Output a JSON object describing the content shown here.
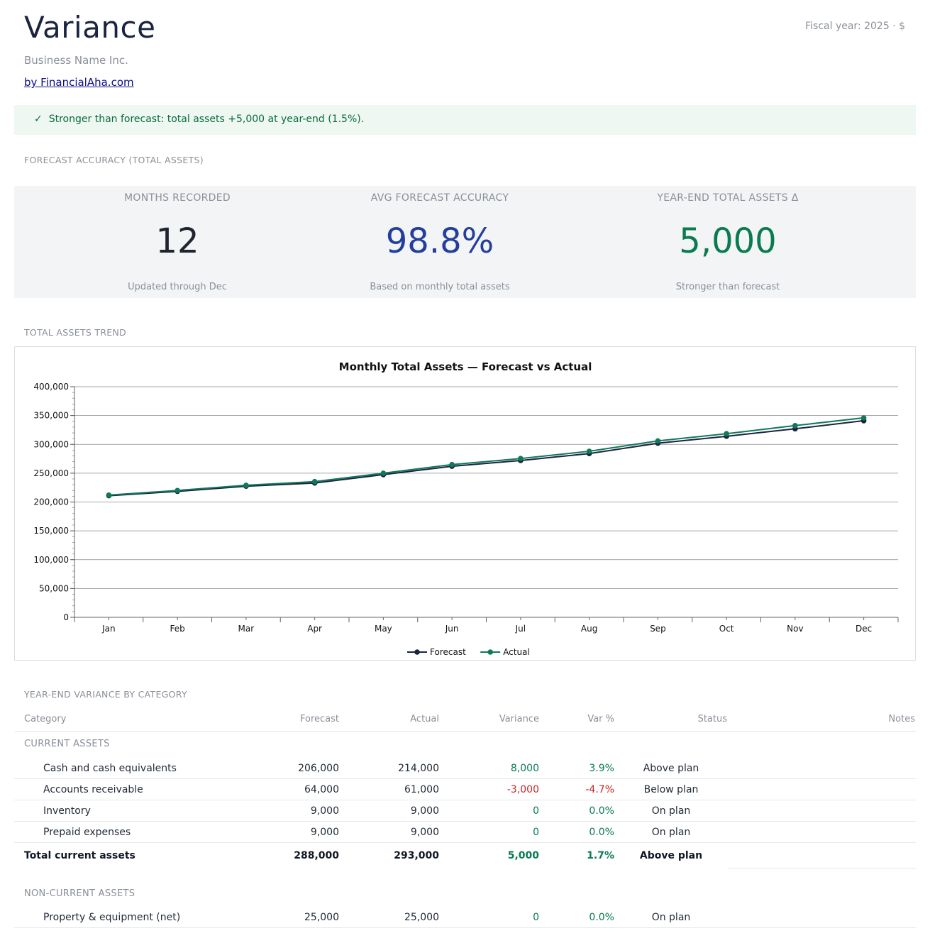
{
  "header": {
    "title": "Variance",
    "fiscal": "Fiscal year: 2025 · $",
    "business": "Business Name Inc.",
    "link": "by FinancialAha.com"
  },
  "banner": {
    "icon": "check-icon",
    "check": "✓",
    "text": "Stronger than forecast: total assets +5,000 at year-end (1.5%)."
  },
  "sections": {
    "accuracy": "FORECAST ACCURACY (TOTAL ASSETS)",
    "trend": "TOTAL ASSETS TREND",
    "variance": "YEAR-END VARIANCE BY CATEGORY"
  },
  "kpis": [
    {
      "label": "MONTHS RECORDED",
      "value": "12",
      "sub": "Updated through Dec",
      "color": "#1f2430"
    },
    {
      "label": "AVG FORECAST ACCURACY",
      "value": "98.8%",
      "sub": "Based on monthly total assets",
      "color": "#233f9b"
    },
    {
      "label": "YEAR-END TOTAL ASSETS Δ",
      "value": "5,000",
      "sub": "Stronger than forecast",
      "color": "#0a7a4f"
    }
  ],
  "chart_data": {
    "type": "line",
    "title": "Monthly Total Assets — Forecast vs Actual",
    "categories": [
      "Jan",
      "Feb",
      "Mar",
      "Apr",
      "May",
      "Jun",
      "Jul",
      "Aug",
      "Sep",
      "Oct",
      "Nov",
      "Dec"
    ],
    "series": [
      {
        "name": "Forecast",
        "color": "#1a2440",
        "values": [
          211000,
          218500,
          227500,
          233000,
          247500,
          262000,
          272000,
          284000,
          302000,
          314000,
          327000,
          341000
        ]
      },
      {
        "name": "Actual",
        "color": "#0f7a5a",
        "values": [
          212000,
          220000,
          229000,
          235500,
          250000,
          265000,
          275500,
          288000,
          306000,
          318500,
          332500,
          346000
        ]
      }
    ],
    "ylim": [
      0,
      400000
    ],
    "yticks": [
      "400,000",
      "350,000",
      "300,000",
      "250,000",
      "200,000",
      "150,000",
      "100,000",
      "50,000",
      "0"
    ],
    "grid": true,
    "legend": "bottom-center"
  },
  "table": {
    "headers": {
      "category": "Category",
      "forecast": "Forecast",
      "actual": "Actual",
      "variance": "Variance",
      "var_pct": "Var %",
      "status": "Status",
      "notes": "Notes"
    },
    "current_label": "CURRENT ASSETS",
    "current_rows": [
      {
        "category": "Cash and cash equivalents",
        "forecast": "206,000",
        "actual": "214,000",
        "variance": "8,000",
        "var_pct": "3.9%",
        "status": "Above plan"
      },
      {
        "category": "Accounts receivable",
        "forecast": "64,000",
        "actual": "61,000",
        "variance": "-3,000",
        "var_pct": "-4.7%",
        "status": "Below plan"
      },
      {
        "category": "Inventory",
        "forecast": "9,000",
        "actual": "9,000",
        "variance": "0",
        "var_pct": "0.0%",
        "status": "On plan"
      },
      {
        "category": "Prepaid expenses",
        "forecast": "9,000",
        "actual": "9,000",
        "variance": "0",
        "var_pct": "0.0%",
        "status": "On plan"
      }
    ],
    "current_total": {
      "category": "Total current assets",
      "forecast": "288,000",
      "actual": "293,000",
      "variance": "5,000",
      "var_pct": "1.7%",
      "status": "Above plan"
    },
    "noncurrent_label": "NON-CURRENT ASSETS",
    "noncurrent_rows": [
      {
        "category": "Property & equipment (net)",
        "forecast": "25,000",
        "actual": "25,000",
        "variance": "0",
        "var_pct": "0.0%",
        "status": "On plan"
      }
    ]
  }
}
